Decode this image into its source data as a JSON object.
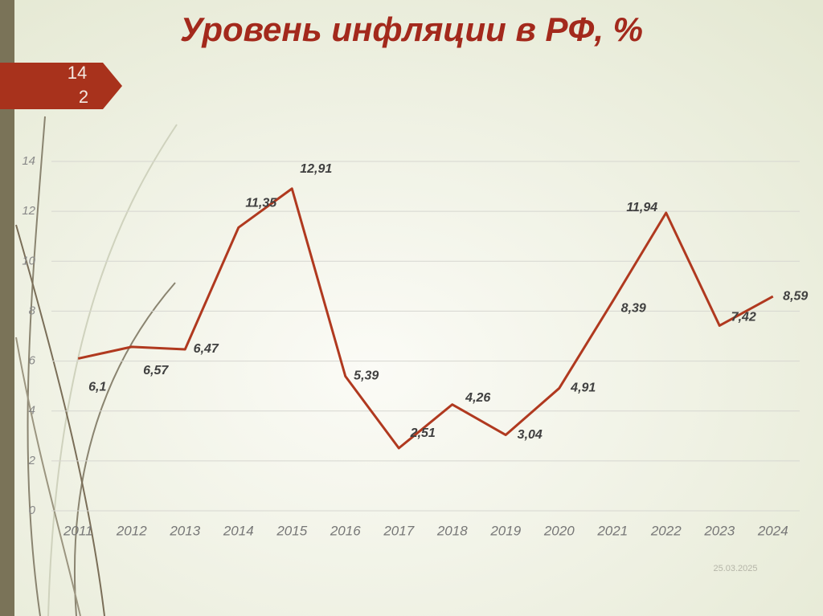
{
  "chart_data": {
    "type": "line",
    "title": "Уровень инфляции в РФ, %",
    "slide_number": "142",
    "date": "25.03.2025",
    "categories": [
      "2011",
      "2012",
      "2013",
      "2014",
      "2015",
      "2016",
      "2017",
      "2018",
      "2019",
      "2020",
      "2021",
      "2022",
      "2023",
      "2024"
    ],
    "series": [
      {
        "color": "#b0391f",
        "values": [
          6.1,
          6.57,
          6.47,
          11.35,
          12.91,
          5.39,
          2.51,
          4.26,
          3.04,
          4.91,
          8.39,
          11.94,
          7.42,
          8.59
        ],
        "value_labels": [
          "6,1",
          "6,57",
          "6,47",
          "11,35",
          "12,91",
          "5,39",
          "2,51",
          "4,26",
          "3,04",
          "4,91",
          "8,39",
          "11,94",
          "7,42",
          "8,59"
        ]
      }
    ],
    "ylim": [
      0,
      14
    ],
    "yticks": [
      0,
      2,
      4,
      6,
      8,
      10,
      12,
      14
    ],
    "grid": true
  }
}
